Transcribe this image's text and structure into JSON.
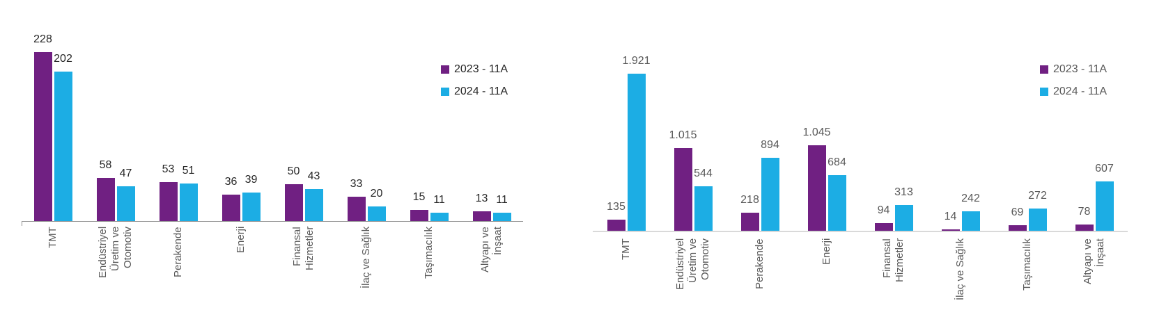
{
  "page": {
    "background": "#ffffff"
  },
  "chart_data": [
    {
      "type": "bar",
      "title": "",
      "legend_position": "top-right",
      "grid": false,
      "ylim": [
        0,
        250
      ],
      "categories": [
        "TMT",
        "Endüstriyel Üretim ve Otomotiv",
        "Perakende",
        "Enerji",
        "Finansal Hizmetler",
        "İlaç ve Sağlık",
        "Taşımacılık",
        "Altyapı ve İnşaat"
      ],
      "category_label_lines": [
        [
          "TMT"
        ],
        [
          "Endüstriyel",
          "Üretim ve",
          "Otomotiv"
        ],
        [
          "Perakende"
        ],
        [
          "Enerji"
        ],
        [
          "Finansal",
          "Hizmetler"
        ],
        [
          "İlaç ve Sağlık"
        ],
        [
          "Taşımacılık"
        ],
        [
          "Altyapı ve",
          "İnşaat"
        ]
      ],
      "series": [
        {
          "name": "2023 - 11A",
          "color": "#702082",
          "values": [
            228,
            58,
            53,
            36,
            50,
            33,
            15,
            13
          ],
          "labels": [
            "228",
            "58",
            "53",
            "36",
            "50",
            "33",
            "15",
            "13"
          ]
        },
        {
          "name": "2024 - 11A",
          "color": "#1CADE4",
          "values": [
            202,
            47,
            51,
            39,
            43,
            20,
            11,
            11
          ],
          "labels": [
            "202",
            "47",
            "51",
            "39",
            "43",
            "20",
            "11",
            "11"
          ]
        }
      ],
      "colors": {
        "value_labels": "#262626",
        "category_labels": "#595959",
        "legend_text": "#262626",
        "axis": "#909090"
      }
    },
    {
      "type": "bar",
      "title": "",
      "legend_position": "top-right",
      "grid": false,
      "ylim": [
        0,
        2000
      ],
      "categories": [
        "TMT",
        "Endüstriyel Üretim ve Otomotiv",
        "Perakende",
        "Enerji",
        "Finansal Hizmetler",
        "İlaç ve Sağlık",
        "Taşımacılık",
        "Altyapı ve İnşaat"
      ],
      "category_label_lines": [
        [
          "TMT"
        ],
        [
          "Endüstriyel",
          "Üretim ve",
          "Otomotiv"
        ],
        [
          "Perakende"
        ],
        [
          "Enerji"
        ],
        [
          "Finansal",
          "Hizmetler"
        ],
        [
          "İlaç ve Sağlık"
        ],
        [
          "Taşımacılık"
        ],
        [
          "Altyapı ve",
          "İnşaat"
        ]
      ],
      "series": [
        {
          "name": "2023 - 11A",
          "color": "#702082",
          "values": [
            135,
            1015,
            218,
            1045,
            94,
            14,
            69,
            78
          ],
          "labels": [
            "135",
            "1.015",
            "218",
            "1.045",
            "94",
            "14",
            "69",
            "78"
          ]
        },
        {
          "name": "2024 - 11A",
          "color": "#1CADE4",
          "values": [
            1921,
            544,
            894,
            684,
            313,
            242,
            272,
            607
          ],
          "labels": [
            "1.921",
            "544",
            "894",
            "684",
            "313",
            "242",
            "272",
            "607"
          ]
        }
      ],
      "colors": {
        "value_labels": "#595959",
        "category_labels": "#595959",
        "legend_text": "#595959",
        "axis": "#D9D9D9"
      }
    }
  ]
}
